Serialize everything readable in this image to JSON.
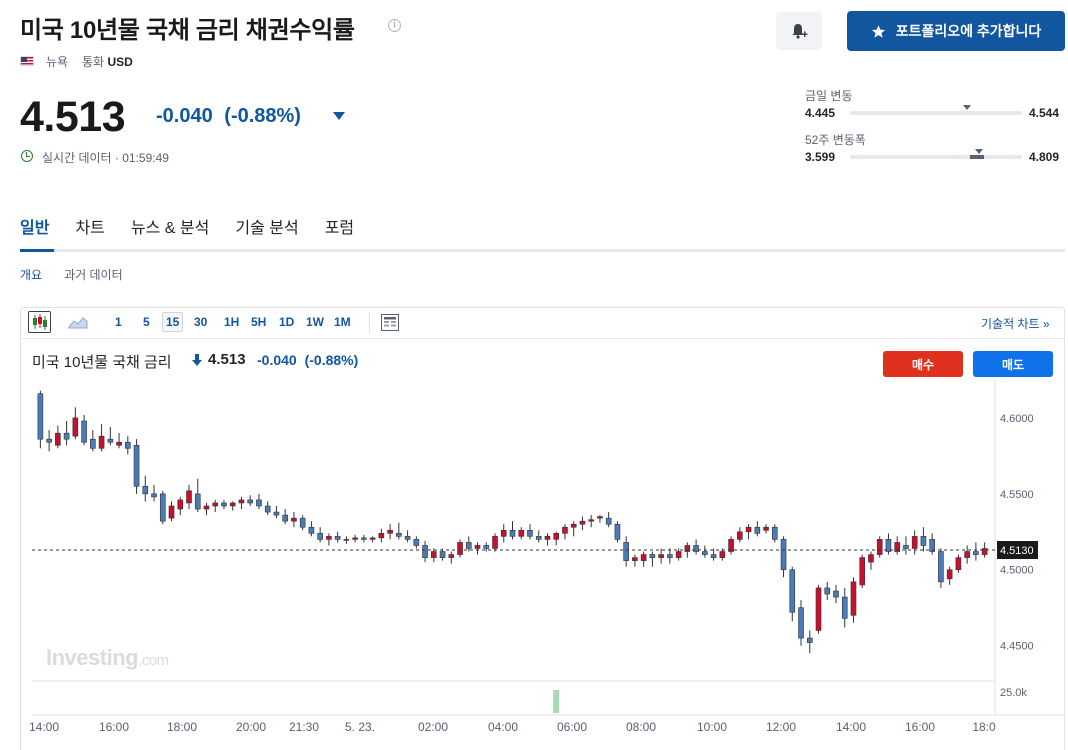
{
  "header": {
    "title": "미국 10년물 국채 금리 채권수익률",
    "exchange": "뉴욕",
    "currency_label": "통화",
    "currency": "USD",
    "add_portfolio_label": "포트폴리오에 추가합니다"
  },
  "quote": {
    "price": "4.513",
    "change": "-0.040",
    "change_pct": "(-0.88%)",
    "realtime_label": "실시간 데이터",
    "time": "01:59:49"
  },
  "ranges": {
    "day": {
      "label": "금일 변동",
      "low": "4.445",
      "high": "4.544",
      "current_frac": 0.68
    },
    "week52": {
      "label": "52주 변동폭",
      "low": "3.599",
      "high": "4.809",
      "current_frac": 0.75,
      "fill_from": 0.7,
      "fill_to": 0.78
    }
  },
  "tabs": [
    {
      "label": "일반",
      "active": true
    },
    {
      "label": "차트"
    },
    {
      "label": "뉴스 & 분석"
    },
    {
      "label": "기술 분석"
    },
    {
      "label": "포럼"
    }
  ],
  "subtabs": [
    {
      "label": "개요",
      "active": true
    },
    {
      "label": "과거 데이터"
    }
  ],
  "toolbar": {
    "intervals": [
      "1",
      "5",
      "15",
      "30",
      "1H",
      "5H",
      "1D",
      "1W",
      "1M"
    ],
    "active_interval": "15",
    "advanced_link": "기술적 차트 »"
  },
  "chart_header": {
    "title": "미국 10년물 국채 금리",
    "price": "4.513",
    "change": "-0.040",
    "change_pct": "(-0.88%)",
    "buy_label": "매수",
    "sell_label": "매도"
  },
  "colors": {
    "accent": "#1256a0",
    "up": "#c8102e",
    "down": "#4a7ab8",
    "buy": "#e0301e",
    "sell": "#1072e8"
  },
  "chart_data": {
    "type": "candlestick",
    "ylim": [
      4.43,
      4.625
    ],
    "yticks": [
      "4.6000",
      "4.5500",
      "4.5000",
      "4.4500"
    ],
    "ytick_values": [
      4.6,
      4.55,
      4.5,
      4.45
    ],
    "current_label": "4.5130",
    "current_value": 4.513,
    "volume_label": "25.0k",
    "watermark": "Investing",
    "watermark_suffix": ".com",
    "x_labels": [
      "14:00",
      "16:00",
      "18:00",
      "20:00",
      "21:30",
      "5. 23.",
      "02:00",
      "04:00",
      "06:00",
      "08:00",
      "10:00",
      "12:00",
      "14:00",
      "16:00",
      "18:0"
    ],
    "candles": [
      [
        4.616,
        4.618,
        4.58,
        4.586
      ],
      [
        4.586,
        4.592,
        4.578,
        4.584
      ],
      [
        4.582,
        4.595,
        4.58,
        4.59
      ],
      [
        4.59,
        4.598,
        4.582,
        4.586
      ],
      [
        4.588,
        4.607,
        4.586,
        4.6
      ],
      [
        4.598,
        4.602,
        4.582,
        4.584
      ],
      [
        4.586,
        4.592,
        4.578,
        4.58
      ],
      [
        4.58,
        4.596,
        4.578,
        4.588
      ],
      [
        4.586,
        4.594,
        4.582,
        4.584
      ],
      [
        4.582,
        4.59,
        4.58,
        4.584
      ],
      [
        4.584,
        4.588,
        4.576,
        4.58
      ],
      [
        4.582,
        4.586,
        4.55,
        4.555
      ],
      [
        4.555,
        4.562,
        4.545,
        4.55
      ],
      [
        4.55,
        4.556,
        4.545,
        4.548
      ],
      [
        4.55,
        4.552,
        4.53,
        4.532
      ],
      [
        4.534,
        4.545,
        4.532,
        4.542
      ],
      [
        4.54,
        4.548,
        4.536,
        4.546
      ],
      [
        4.544,
        4.556,
        4.54,
        4.552
      ],
      [
        4.55,
        4.56,
        4.538,
        4.54
      ],
      [
        4.54,
        4.544,
        4.536,
        4.542
      ],
      [
        4.542,
        4.546,
        4.538,
        4.544
      ],
      [
        4.544,
        4.546,
        4.54,
        4.542
      ],
      [
        4.542,
        4.545,
        4.539,
        4.544
      ],
      [
        4.544,
        4.548,
        4.54,
        4.546
      ],
      [
        4.546,
        4.549,
        4.542,
        4.544
      ],
      [
        4.546,
        4.55,
        4.54,
        4.542
      ],
      [
        4.542,
        4.545,
        4.536,
        4.538
      ],
      [
        4.538,
        4.542,
        4.534,
        4.536
      ],
      [
        4.536,
        4.54,
        4.53,
        4.532
      ],
      [
        4.532,
        4.538,
        4.528,
        4.534
      ],
      [
        4.534,
        4.536,
        4.526,
        4.528
      ],
      [
        4.528,
        4.532,
        4.522,
        4.524
      ],
      [
        4.524,
        4.528,
        4.518,
        4.52
      ],
      [
        4.52,
        4.524,
        4.516,
        4.522
      ],
      [
        4.522,
        4.525,
        4.518,
        4.52
      ],
      [
        4.52,
        4.522,
        4.517,
        4.52
      ],
      [
        4.52,
        4.523,
        4.518,
        4.521
      ],
      [
        4.521,
        4.523,
        4.518,
        4.52
      ],
      [
        4.52,
        4.522,
        4.518,
        4.521
      ],
      [
        4.521,
        4.527,
        4.518,
        4.524
      ],
      [
        4.524,
        4.53,
        4.52,
        4.526
      ],
      [
        4.524,
        4.531,
        4.52,
        4.522
      ],
      [
        4.522,
        4.526,
        4.518,
        4.52
      ],
      [
        4.52,
        4.522,
        4.514,
        4.516
      ],
      [
        4.516,
        4.519,
        4.505,
        4.508
      ],
      [
        4.508,
        4.514,
        4.505,
        4.512
      ],
      [
        4.512,
        4.514,
        4.506,
        4.508
      ],
      [
        4.508,
        4.512,
        4.504,
        4.51
      ],
      [
        4.51,
        4.52,
        4.508,
        4.518
      ],
      [
        4.518,
        4.522,
        4.512,
        4.514
      ],
      [
        4.514,
        4.518,
        4.51,
        4.516
      ],
      [
        4.516,
        4.518,
        4.512,
        4.514
      ],
      [
        4.514,
        4.524,
        4.512,
        4.522
      ],
      [
        4.522,
        4.53,
        4.518,
        4.526
      ],
      [
        4.526,
        4.532,
        4.52,
        4.522
      ],
      [
        4.522,
        4.528,
        4.52,
        4.526
      ],
      [
        4.526,
        4.53,
        4.52,
        4.522
      ],
      [
        4.522,
        4.526,
        4.518,
        4.52
      ],
      [
        4.52,
        4.524,
        4.516,
        4.522
      ],
      [
        4.52,
        4.525,
        4.516,
        4.524
      ],
      [
        4.524,
        4.53,
        4.52,
        4.528
      ],
      [
        4.528,
        4.532,
        4.522,
        4.53
      ],
      [
        4.53,
        4.535,
        4.526,
        4.532
      ],
      [
        4.532,
        4.536,
        4.528,
        4.533
      ],
      [
        4.534,
        4.536,
        4.531,
        4.535
      ],
      [
        4.534,
        4.538,
        4.528,
        4.53
      ],
      [
        4.53,
        4.532,
        4.518,
        4.52
      ],
      [
        4.518,
        4.522,
        4.502,
        4.506
      ],
      [
        4.506,
        4.51,
        4.502,
        4.508
      ],
      [
        4.506,
        4.512,
        4.502,
        4.51
      ],
      [
        4.51,
        4.512,
        4.502,
        4.508
      ],
      [
        4.508,
        4.514,
        4.504,
        4.51
      ],
      [
        4.51,
        4.514,
        4.504,
        4.508
      ],
      [
        4.508,
        4.514,
        4.506,
        4.512
      ],
      [
        4.512,
        4.518,
        4.508,
        4.516
      ],
      [
        4.516,
        4.52,
        4.51,
        4.512
      ],
      [
        4.512,
        4.516,
        4.508,
        4.51
      ],
      [
        4.51,
        4.514,
        4.506,
        4.508
      ],
      [
        4.508,
        4.514,
        4.506,
        4.512
      ],
      [
        4.512,
        4.522,
        4.51,
        4.52
      ],
      [
        4.52,
        4.528,
        4.518,
        4.525
      ],
      [
        4.525,
        4.53,
        4.52,
        4.528
      ],
      [
        4.528,
        4.532,
        4.522,
        4.524
      ],
      [
        4.526,
        4.53,
        4.524,
        4.528
      ],
      [
        4.528,
        4.53,
        4.518,
        4.52
      ],
      [
        4.52,
        4.522,
        4.495,
        4.5
      ],
      [
        4.5,
        4.502,
        4.466,
        4.472
      ],
      [
        4.475,
        4.48,
        4.45,
        4.455
      ],
      [
        4.455,
        4.46,
        4.445,
        4.452
      ],
      [
        4.46,
        4.49,
        4.458,
        4.488
      ],
      [
        4.488,
        4.492,
        4.48,
        4.484
      ],
      [
        4.486,
        4.49,
        4.478,
        4.482
      ],
      [
        4.482,
        4.488,
        4.462,
        4.468
      ],
      [
        4.47,
        4.495,
        4.465,
        4.492
      ],
      [
        4.49,
        4.51,
        4.488,
        4.508
      ],
      [
        4.505,
        4.512,
        4.5,
        4.51
      ],
      [
        4.51,
        4.522,
        4.508,
        4.52
      ],
      [
        4.52,
        4.524,
        4.51,
        4.512
      ],
      [
        4.512,
        4.522,
        4.51,
        4.518
      ],
      [
        4.516,
        4.522,
        4.51,
        4.514
      ],
      [
        4.514,
        4.526,
        4.51,
        4.522
      ],
      [
        4.522,
        4.528,
        4.512,
        4.516
      ],
      [
        4.52,
        4.524,
        4.51,
        4.512
      ],
      [
        4.512,
        4.514,
        4.488,
        4.492
      ],
      [
        4.494,
        4.502,
        4.49,
        4.5
      ],
      [
        4.5,
        4.51,
        4.498,
        4.508
      ],
      [
        4.508,
        4.516,
        4.504,
        4.512
      ],
      [
        4.512,
        4.518,
        4.506,
        4.51
      ],
      [
        4.51,
        4.518,
        4.508,
        4.514
      ]
    ],
    "volume_spike_index": 59
  }
}
